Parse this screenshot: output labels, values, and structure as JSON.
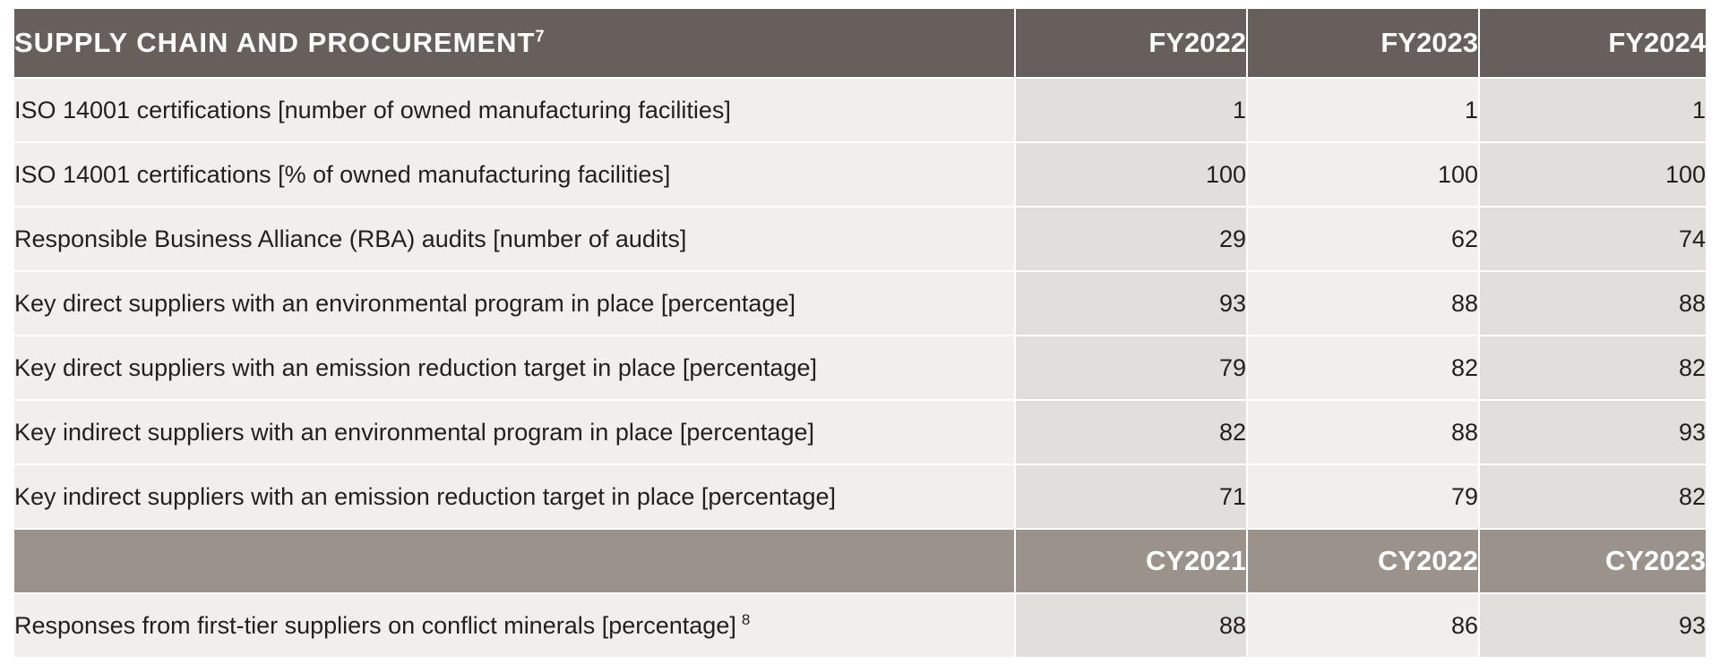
{
  "table": {
    "title": "SUPPLY CHAIN AND PROCUREMENT",
    "title_footnote": "7",
    "fiscal_years": [
      "FY2022",
      "FY2023",
      "FY2024"
    ],
    "rows": [
      {
        "label": "ISO 14001 certifications [number of owned manufacturing facilities]",
        "values": [
          "1",
          "1",
          "1"
        ]
      },
      {
        "label": "ISO 14001 certifications [% of owned manufacturing facilities]",
        "values": [
          "100",
          "100",
          "100"
        ]
      },
      {
        "label": "Responsible Business Alliance (RBA) audits [number of audits]",
        "values": [
          "29",
          "62",
          "74"
        ]
      },
      {
        "label": "Key direct suppliers with an environmental program in place [percentage]",
        "values": [
          "93",
          "88",
          "88"
        ]
      },
      {
        "label": "Key direct suppliers with an emission reduction target in place [percentage]",
        "values": [
          "79",
          "82",
          "82"
        ]
      },
      {
        "label": "Key indirect suppliers with an environmental program in place [percentage]",
        "values": [
          "82",
          "88",
          "93"
        ]
      },
      {
        "label": "Key indirect suppliers with an emission reduction target in place [percentage]",
        "values": [
          "71",
          "79",
          "82"
        ]
      }
    ],
    "calendar_years": [
      "CY2021",
      "CY2022",
      "CY2023"
    ],
    "cy_row": {
      "label": "Responses from first-tier suppliers on conflict minerals [percentage]",
      "footnote": "8",
      "values": [
        "88",
        "86",
        "93"
      ]
    }
  },
  "colors": {
    "header_dark": "#675f5b",
    "header_light": "#9c928c",
    "cell_light": "#f0efed",
    "cell_dark": "#e1dfdb",
    "text": "#231f20"
  }
}
